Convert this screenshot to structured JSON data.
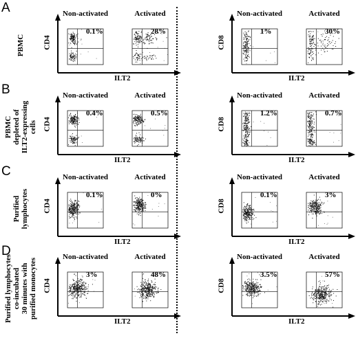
{
  "rows": [
    {
      "letter": "A",
      "label_lines": [
        "PBMC"
      ],
      "left": {
        "ylabel": "CD4",
        "xlabel": "ILT2",
        "panels": [
          {
            "title": "Non-activated",
            "percent": "0.1%"
          },
          {
            "title": "Activated",
            "percent": "28%"
          }
        ]
      },
      "right": {
        "ylabel": "CD8",
        "xlabel": "ILT2",
        "panels": [
          {
            "title": "Non-activated",
            "percent": "1%"
          },
          {
            "title": "Activated",
            "percent": "30%"
          }
        ]
      }
    },
    {
      "letter": "B",
      "label_lines": [
        "PBMC",
        "depleted of",
        "ILT2-expressing",
        "cells"
      ],
      "left": {
        "ylabel": "CD4",
        "xlabel": "ILT2",
        "panels": [
          {
            "title": "Non-activated",
            "percent": "0.4%"
          },
          {
            "title": "Activated",
            "percent": "0.5%"
          }
        ]
      },
      "right": {
        "ylabel": "CD8",
        "xlabel": "ILT2",
        "panels": [
          {
            "title": "Non-activated",
            "percent": "1.2%"
          },
          {
            "title": "Activated",
            "percent": "0.7%"
          }
        ]
      }
    },
    {
      "letter": "C",
      "label_lines": [
        "Purified",
        "lymphocytes"
      ],
      "left": {
        "ylabel": "CD4",
        "xlabel": "ILT2",
        "panels": [
          {
            "title": "Non-activated",
            "percent": "0.1%"
          },
          {
            "title": "Activated",
            "percent": "0%"
          }
        ]
      },
      "right": {
        "ylabel": "CD8",
        "xlabel": "ILT2",
        "panels": [
          {
            "title": "Non-activated",
            "percent": "0.1%"
          },
          {
            "title": "Activated",
            "percent": "3%"
          }
        ]
      }
    },
    {
      "letter": "D",
      "label_lines": [
        "Purified lymphocytes",
        "co-incubated",
        "30 minutes with",
        "purified monocytes"
      ],
      "left": {
        "ylabel": "CD4",
        "xlabel": "ILT2",
        "panels": [
          {
            "title": "Non-activated",
            "percent": "3%"
          },
          {
            "title": "Activated",
            "percent": "48%"
          }
        ]
      },
      "right": {
        "ylabel": "CD8",
        "xlabel": "ILT2",
        "panels": [
          {
            "title": "Non-activated",
            "percent": "3.5%"
          },
          {
            "title": "Activated",
            "percent": "57%"
          }
        ]
      }
    }
  ]
}
